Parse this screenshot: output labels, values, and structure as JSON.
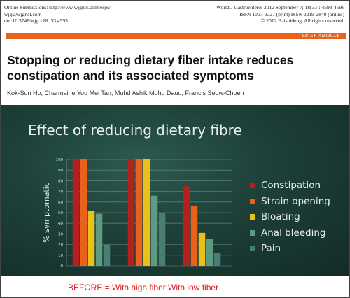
{
  "paper": {
    "submission_lines": [
      "Online Submissions: http://www.wjgnet.com/esps/",
      "wjg@wjgnet.com",
      "doi:10.3748/wjg.v18.i33.4593"
    ],
    "journal_lines": [
      "World J Gastroenterol  2012 September 7; 18(33): 4593-4596",
      "ISSN 1007-9327 (print)  ISSN 2219-2840 (online)",
      "© 2012 Baishideng. All rights reserved."
    ],
    "section_label": "BRIEF ARTICLE",
    "title": "Stopping or reducing dietary fiber intake reduces constipation and its associated symptoms",
    "authors": "Kok-Sun Ho, Charmaine You Mei Tan, Muhd Ashik Mohd Daud, Francis Seow-Choen"
  },
  "slide": {
    "title": "Effect of reducing dietary fibre"
  },
  "footer": {
    "caption": "BEFORE  =   With high fiber  With low fiber"
  },
  "colors": {
    "constipation": "#b32020",
    "strain_opening": "#e8621c",
    "bloating": "#e8c21a",
    "anal_bleeding": "#5e9b82",
    "pain": "#4a7e73"
  },
  "chart_data": {
    "type": "bar",
    "ylabel": "% symptomatic",
    "xlabel": "",
    "ylim": [
      0,
      100
    ],
    "yticks": [
      0,
      10,
      20,
      30,
      40,
      50,
      60,
      70,
      80,
      90,
      100
    ],
    "grid": true,
    "legend_position": "right",
    "categories": [
      "",
      "",
      ""
    ],
    "series": [
      {
        "name": "Constipation",
        "color": "#b32020",
        "values": [
          100,
          100,
          75
        ]
      },
      {
        "name": "Strain opening",
        "color": "#e8621c",
        "values": [
          100,
          100,
          56
        ]
      },
      {
        "name": "Bloating",
        "color": "#e8c21a",
        "values": [
          52,
          100,
          31
        ]
      },
      {
        "name": "Anal bleeding",
        "color": "#5e9b82",
        "values": [
          49,
          66,
          25
        ]
      },
      {
        "name": "Pain",
        "color": "#4a7e73",
        "values": [
          20,
          50,
          12
        ]
      }
    ]
  }
}
